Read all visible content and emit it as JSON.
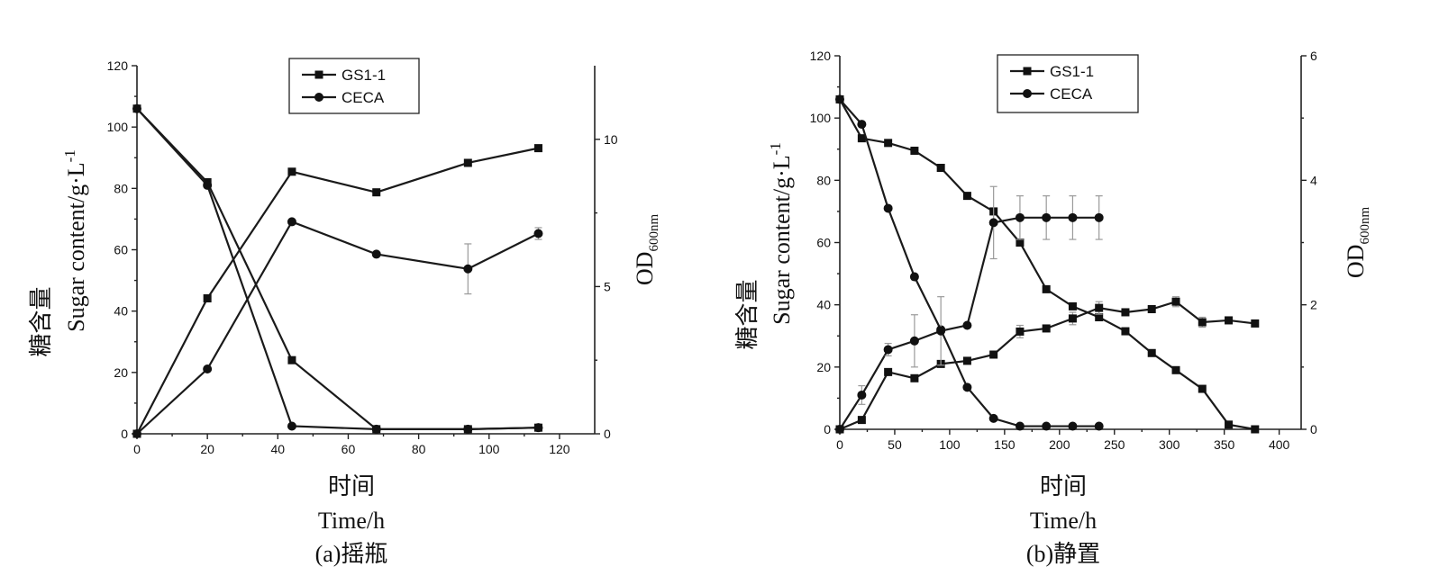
{
  "chart_data": [
    {
      "type": "line",
      "caption": "(a)摇瓶",
      "xlabel_cn": "时间",
      "xlabel": "Time/h",
      "ylabel_cn": "糖含量",
      "ylabel": "Sugar content/g·L",
      "ylabel_sup": "-1",
      "y2label_main": "OD",
      "y2label_sub": "600nm",
      "xlim": [
        0,
        130
      ],
      "ylim": [
        0,
        120
      ],
      "y2lim": [
        0,
        12.5
      ],
      "x_ticks": [
        0,
        20,
        40,
        60,
        80,
        100,
        120
      ],
      "y_ticks": [
        0,
        20,
        40,
        60,
        80,
        100,
        120
      ],
      "y2_ticks": [
        0,
        5,
        10
      ],
      "legend": {
        "position": "top-center",
        "entries": [
          "GS1-1",
          "CECA"
        ]
      },
      "series": [
        {
          "name": "GS1-1",
          "axis": "left",
          "marker": "square",
          "x": [
            0,
            20,
            44,
            68,
            94,
            114
          ],
          "y": [
            106,
            82,
            24,
            1.5,
            1.5,
            2
          ]
        },
        {
          "name": "CECA",
          "axis": "left",
          "marker": "circle",
          "x": [
            0,
            20,
            44,
            68,
            94,
            114
          ],
          "y": [
            106,
            81,
            2.5,
            1.5,
            1.5,
            2
          ]
        },
        {
          "name": "GS1-1",
          "axis": "right",
          "marker": "square",
          "x": [
            0,
            20,
            44,
            68,
            94,
            114
          ],
          "y": [
            0,
            4.6,
            8.9,
            8.2,
            9.2,
            9.7
          ]
        },
        {
          "name": "CECA",
          "axis": "right",
          "marker": "circle",
          "x": [
            0,
            20,
            44,
            68,
            94,
            114
          ],
          "y": [
            0,
            2.2,
            7.2,
            6.1,
            5.6,
            6.8
          ],
          "err": [
            0,
            0,
            0,
            0,
            0.85,
            0.2
          ]
        }
      ]
    },
    {
      "type": "line",
      "caption": "(b)静置",
      "xlabel_cn": "时间",
      "xlabel": "Time/h",
      "ylabel_cn": "糖含量",
      "ylabel": "Sugar content/g·L",
      "ylabel_sup": "-1",
      "y2label_main": "OD",
      "y2label_sub": "600nm",
      "xlim": [
        0,
        420
      ],
      "ylim": [
        0,
        120
      ],
      "y2lim": [
        0,
        6
      ],
      "x_ticks": [
        0,
        50,
        100,
        150,
        200,
        250,
        300,
        350,
        400
      ],
      "y_ticks": [
        0,
        20,
        40,
        60,
        80,
        100,
        120
      ],
      "y2_ticks": [
        0,
        2,
        4,
        6
      ],
      "legend": {
        "position": "top-center",
        "entries": [
          "GS1-1",
          "CECA"
        ]
      },
      "series": [
        {
          "name": "GS1-1",
          "axis": "left",
          "marker": "square",
          "x": [
            0,
            20,
            44,
            68,
            92,
            116,
            140,
            164,
            188,
            212,
            236,
            260,
            284,
            306,
            330,
            354,
            378
          ],
          "y": [
            106,
            93.5,
            92,
            89.5,
            84,
            75,
            70,
            60,
            45,
            39.5,
            36,
            31.5,
            24.5,
            19,
            13,
            1.5,
            0
          ],
          "err": [
            0,
            0,
            0,
            0,
            0,
            0,
            0,
            0,
            0,
            0,
            0,
            0,
            0,
            0,
            0,
            0,
            0
          ]
        },
        {
          "name": "CECA",
          "axis": "left",
          "marker": "circle",
          "x": [
            0,
            20,
            44,
            68,
            92,
            116,
            140,
            164,
            188,
            212,
            236
          ],
          "y": [
            106,
            98,
            71,
            49,
            32,
            13.5,
            3.5,
            1,
            1,
            1,
            1
          ]
        },
        {
          "name": "GS1-1",
          "axis": "right",
          "marker": "square",
          "x": [
            0,
            20,
            44,
            68,
            92,
            116,
            140,
            164,
            188,
            212,
            236,
            260,
            284,
            306,
            330,
            354,
            378
          ],
          "y": [
            0,
            0.15,
            0.92,
            0.82,
            1.05,
            1.1,
            1.2,
            1.57,
            1.62,
            1.78,
            1.95,
            1.88,
            1.93,
            2.05,
            1.72,
            1.75,
            1.7
          ],
          "err": [
            0,
            0,
            0.05,
            0.05,
            0,
            0,
            0,
            0.1,
            0.05,
            0.1,
            0.1,
            0,
            0,
            0.08,
            0.08,
            0,
            0
          ]
        },
        {
          "name": "CECA",
          "axis": "right",
          "marker": "circle",
          "x": [
            0,
            20,
            44,
            68,
            92,
            116,
            140,
            164,
            188,
            212,
            236
          ],
          "y": [
            0,
            0.55,
            1.28,
            1.42,
            1.58,
            1.67,
            3.32,
            3.4,
            3.4,
            3.4,
            3.4
          ],
          "err": [
            0,
            0.15,
            0.1,
            0.42,
            0.55,
            0,
            0.58,
            0.35,
            0.35,
            0.35,
            0.35
          ]
        }
      ]
    }
  ]
}
